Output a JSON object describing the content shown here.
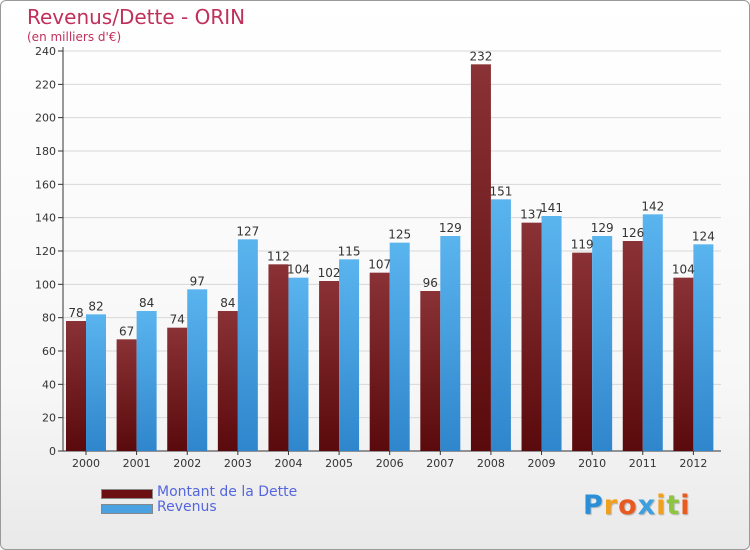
{
  "header": {
    "title": "Revenus/Dette - ORIN",
    "subtitle": "(en milliers d'€)"
  },
  "chart_data": {
    "type": "bar",
    "title": "Revenus/Dette - ORIN",
    "subtitle": "(en milliers d'€)",
    "xlabel": "",
    "ylabel": "",
    "ylim": [
      0,
      240
    ],
    "yticks": [
      0,
      20,
      40,
      60,
      80,
      100,
      120,
      140,
      160,
      180,
      200,
      220,
      240
    ],
    "grid": true,
    "legend_position": "bottom-left",
    "categories": [
      "2000",
      "2001",
      "2002",
      "2003",
      "2004",
      "2005",
      "2006",
      "2007",
      "2008",
      "2009",
      "2010",
      "2011",
      "2012"
    ],
    "series": [
      {
        "name": "Montant de la Dette",
        "color": "#7a2a2e",
        "values": [
          78,
          67,
          74,
          84,
          112,
          102,
          107,
          96,
          232,
          137,
          119,
          126,
          104
        ]
      },
      {
        "name": "Revenus",
        "color": "#4aa3e0",
        "values": [
          82,
          84,
          97,
          127,
          104,
          115,
          125,
          129,
          151,
          141,
          129,
          142,
          124
        ]
      }
    ]
  },
  "legend": {
    "items": [
      {
        "label": "Montant de la Dette",
        "color": "#6b0f12"
      },
      {
        "label": "Revenus",
        "color": "#4aa3e0"
      }
    ]
  },
  "logo": {
    "text": "Proxiti",
    "letters": [
      {
        "ch": "P",
        "color": "#2a8fd8"
      },
      {
        "ch": "r",
        "color": "#f0a020"
      },
      {
        "ch": "o",
        "color": "#e85a20"
      },
      {
        "ch": "x",
        "color": "#3aa0e0"
      },
      {
        "ch": "i",
        "color": "#f0a020"
      },
      {
        "ch": "t",
        "color": "#8cc63f"
      },
      {
        "ch": "i",
        "color": "#e85a20"
      }
    ]
  }
}
